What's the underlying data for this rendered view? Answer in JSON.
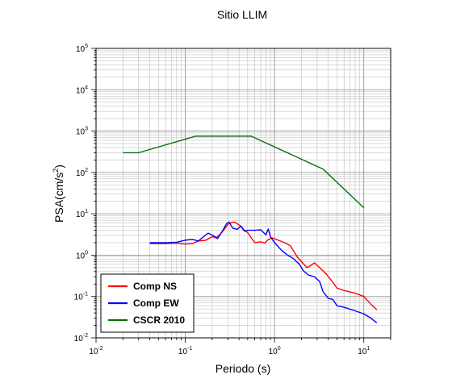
{
  "chart_data": {
    "type": "line",
    "title": "Sitio LLIM",
    "xlabel": "Periodo (s)",
    "ylabel": {
      "base": "PSA(cm/s",
      "sup": "2",
      "close": ")"
    },
    "xscale": "log",
    "yscale": "log",
    "xlim": [
      0.01,
      20
    ],
    "ylim": [
      0.01,
      100000
    ],
    "grid": true,
    "legend_position": "bottom-left",
    "x_ticks": [
      {
        "value": 0.01,
        "base": "10",
        "exp": "-2"
      },
      {
        "value": 0.1,
        "base": "10",
        "exp": "-1"
      },
      {
        "value": 1,
        "base": "10",
        "exp": "0"
      },
      {
        "value": 10,
        "base": "10",
        "exp": "1"
      }
    ],
    "y_ticks": [
      {
        "value": 0.01,
        "base": "10",
        "exp": "-2"
      },
      {
        "value": 0.1,
        "base": "10",
        "exp": "-1"
      },
      {
        "value": 1,
        "base": "10",
        "exp": "0"
      },
      {
        "value": 10,
        "base": "10",
        "exp": "1"
      },
      {
        "value": 100,
        "base": "10",
        "exp": "2"
      },
      {
        "value": 1000,
        "base": "10",
        "exp": "3"
      },
      {
        "value": 10000,
        "base": "10",
        "exp": "4"
      },
      {
        "value": 100000,
        "base": "10",
        "exp": "5"
      }
    ],
    "series": [
      {
        "name": "Comp NS",
        "color": "#ff0000",
        "points": [
          [
            0.04,
            1.9
          ],
          [
            0.06,
            1.9
          ],
          [
            0.08,
            1.95
          ],
          [
            0.1,
            1.85
          ],
          [
            0.12,
            1.9
          ],
          [
            0.14,
            2.2
          ],
          [
            0.17,
            2.3
          ],
          [
            0.2,
            2.8
          ],
          [
            0.22,
            2.6
          ],
          [
            0.25,
            3.3
          ],
          [
            0.28,
            4.5
          ],
          [
            0.3,
            5.5
          ],
          [
            0.32,
            6.0
          ],
          [
            0.35,
            6.3
          ],
          [
            0.38,
            5.8
          ],
          [
            0.42,
            5.0
          ],
          [
            0.46,
            4.0
          ],
          [
            0.5,
            3.5
          ],
          [
            0.55,
            2.6
          ],
          [
            0.6,
            2.0
          ],
          [
            0.7,
            2.1
          ],
          [
            0.78,
            1.95
          ],
          [
            0.85,
            2.4
          ],
          [
            0.95,
            2.6
          ],
          [
            1.1,
            2.3
          ],
          [
            1.3,
            2.0
          ],
          [
            1.5,
            1.7
          ],
          [
            1.8,
            0.9
          ],
          [
            2.0,
            0.7
          ],
          [
            2.3,
            0.5
          ],
          [
            2.5,
            0.55
          ],
          [
            2.8,
            0.65
          ],
          [
            3.2,
            0.5
          ],
          [
            3.8,
            0.35
          ],
          [
            4.5,
            0.22
          ],
          [
            5.0,
            0.16
          ],
          [
            6.0,
            0.14
          ],
          [
            8.0,
            0.12
          ],
          [
            10.0,
            0.1
          ],
          [
            12.0,
            0.065
          ],
          [
            14.0,
            0.048
          ]
        ]
      },
      {
        "name": "Comp EW",
        "color": "#0000ff",
        "points": [
          [
            0.04,
            2.0
          ],
          [
            0.06,
            2.0
          ],
          [
            0.08,
            2.05
          ],
          [
            0.1,
            2.3
          ],
          [
            0.12,
            2.4
          ],
          [
            0.14,
            2.2
          ],
          [
            0.16,
            2.8
          ],
          [
            0.18,
            3.4
          ],
          [
            0.21,
            2.9
          ],
          [
            0.23,
            2.5
          ],
          [
            0.26,
            3.8
          ],
          [
            0.29,
            5.8
          ],
          [
            0.31,
            6.3
          ],
          [
            0.34,
            4.5
          ],
          [
            0.38,
            4.2
          ],
          [
            0.42,
            5.0
          ],
          [
            0.46,
            3.8
          ],
          [
            0.5,
            4.0
          ],
          [
            0.6,
            4.0
          ],
          [
            0.7,
            4.1
          ],
          [
            0.8,
            3.1
          ],
          [
            0.85,
            4.3
          ],
          [
            0.9,
            2.8
          ],
          [
            1.0,
            2.0
          ],
          [
            1.2,
            1.3
          ],
          [
            1.4,
            1.0
          ],
          [
            1.6,
            0.85
          ],
          [
            1.9,
            0.6
          ],
          [
            2.1,
            0.42
          ],
          [
            2.4,
            0.33
          ],
          [
            2.8,
            0.3
          ],
          [
            3.2,
            0.23
          ],
          [
            3.5,
            0.13
          ],
          [
            4.0,
            0.09
          ],
          [
            4.5,
            0.085
          ],
          [
            5.0,
            0.06
          ],
          [
            6.0,
            0.055
          ],
          [
            8.0,
            0.045
          ],
          [
            10.0,
            0.038
          ],
          [
            12.0,
            0.03
          ],
          [
            14.0,
            0.023
          ]
        ]
      },
      {
        "name": "CSCR 2010",
        "color": "#0a6e0a",
        "points": [
          [
            0.02,
            300
          ],
          [
            0.03,
            300
          ],
          [
            0.13,
            750
          ],
          [
            0.55,
            750
          ],
          [
            3.5,
            120
          ],
          [
            10.0,
            14
          ]
        ]
      }
    ]
  }
}
